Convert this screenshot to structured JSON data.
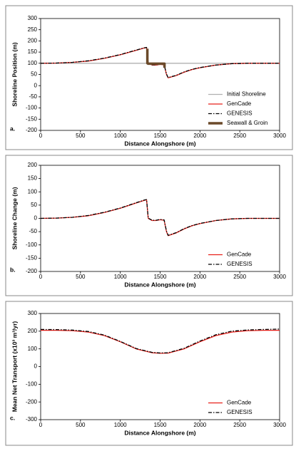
{
  "chart_data": [
    {
      "type": "line",
      "panel_label": "a.",
      "x_label": "Distance Alongshore (m)",
      "y_label": "Shoreline Position (m)",
      "x": [
        0,
        200,
        400,
        600,
        800,
        1000,
        1100,
        1200,
        1300,
        1330,
        1350,
        1400,
        1450,
        1500,
        1550,
        1580,
        1600,
        1700,
        1800,
        1900,
        2000,
        2200,
        2400,
        2600,
        2800,
        3000
      ],
      "series": [
        {
          "name": "Initial Shoreline",
          "color": "#b0b0b0",
          "style": "solid",
          "values": [
            100,
            100,
            100,
            100,
            100,
            100,
            100,
            100,
            100,
            100,
            100,
            100,
            100,
            100,
            100,
            100,
            100,
            100,
            100,
            100,
            100,
            100,
            100,
            100,
            100,
            100
          ]
        },
        {
          "name": "GenCade",
          "color": "#e8201a",
          "style": "solid",
          "values": [
            100,
            101,
            104,
            110,
            122,
            138,
            148,
            158,
            168,
            170,
            100,
            92,
            92,
            95,
            93,
            50,
            35,
            45,
            60,
            72,
            80,
            92,
            98,
            100,
            100,
            100
          ]
        },
        {
          "name": "GENESIS",
          "color": "#000000",
          "style": "dash-dot",
          "values": [
            100,
            101,
            104,
            111,
            123,
            139,
            149,
            159,
            169,
            171,
            101,
            93,
            93,
            96,
            94,
            52,
            36,
            46,
            61,
            73,
            81,
            92,
            98,
            100,
            100,
            100
          ]
        },
        {
          "name": "Seawall & Groin",
          "color": "#6b4a2a",
          "style": "thick",
          "x": [
            1340,
            1340,
            1350,
            1540,
            1555,
            1555
          ],
          "values": [
            165,
            100,
            98,
            98,
            98,
            80
          ]
        }
      ],
      "xlim": [
        0,
        3000
      ],
      "xticks": [
        0,
        500,
        1000,
        1500,
        2000,
        2500,
        3000
      ],
      "ylim": [
        -200,
        300
      ],
      "yticks": [
        -200,
        -150,
        -100,
        -50,
        0,
        50,
        100,
        150,
        200,
        250,
        300
      ],
      "legend": "lower right"
    },
    {
      "type": "line",
      "panel_label": "b.",
      "x_label": "Distance Alongshore (m)",
      "y_label": "Shoreline Change (m)",
      "x": [
        0,
        200,
        400,
        600,
        800,
        1000,
        1100,
        1200,
        1300,
        1330,
        1350,
        1400,
        1450,
        1500,
        1550,
        1580,
        1600,
        1700,
        1800,
        1900,
        2000,
        2200,
        2400,
        2600,
        2800,
        3000
      ],
      "series": [
        {
          "name": "GenCade",
          "color": "#e8201a",
          "style": "solid",
          "values": [
            0,
            1,
            4,
            10,
            22,
            38,
            48,
            58,
            68,
            70,
            0,
            -8,
            -8,
            -5,
            -7,
            -50,
            -65,
            -55,
            -40,
            -28,
            -20,
            -8,
            -2,
            0,
            0,
            0
          ]
        },
        {
          "name": "GENESIS",
          "color": "#000000",
          "style": "dash-dot",
          "values": [
            0,
            1,
            4,
            11,
            23,
            39,
            49,
            59,
            69,
            71,
            1,
            -7,
            -7,
            -4,
            -6,
            -48,
            -64,
            -54,
            -39,
            -27,
            -19,
            -8,
            -2,
            0,
            0,
            0
          ]
        }
      ],
      "xlim": [
        0,
        3000
      ],
      "xticks": [
        0,
        500,
        1000,
        1500,
        2000,
        2500,
        3000
      ],
      "ylim": [
        -200,
        200
      ],
      "yticks": [
        -200,
        -150,
        -100,
        -50,
        0,
        50,
        100,
        150,
        200
      ],
      "legend": "lower right"
    },
    {
      "type": "line",
      "panel_label": "c.",
      "x_label": "Distance Alongshore (m)",
      "y_label": "Mean Net Transport (x10³ m³/yr)",
      "x": [
        0,
        200,
        400,
        600,
        800,
        1000,
        1200,
        1400,
        1500,
        1600,
        1800,
        2000,
        2200,
        2400,
        2600,
        2800,
        3000
      ],
      "series": [
        {
          "name": "GenCade",
          "color": "#e8201a",
          "style": "solid",
          "values": [
            205,
            205,
            203,
            195,
            175,
            140,
            100,
            78,
            75,
            76,
            100,
            140,
            175,
            195,
            203,
            205,
            205
          ]
        },
        {
          "name": "GENESIS",
          "color": "#000000",
          "style": "dash-dot",
          "values": [
            210,
            209,
            206,
            198,
            178,
            142,
            102,
            80,
            77,
            78,
            103,
            144,
            180,
            200,
            207,
            210,
            212
          ]
        }
      ],
      "xlim": [
        0,
        3000
      ],
      "xticks": [
        0,
        500,
        1000,
        1500,
        2000,
        2500,
        3000
      ],
      "ylim": [
        -300,
        300
      ],
      "yticks": [
        -300,
        -200,
        -100,
        0,
        100,
        200,
        300
      ],
      "legend": "lower right"
    }
  ]
}
